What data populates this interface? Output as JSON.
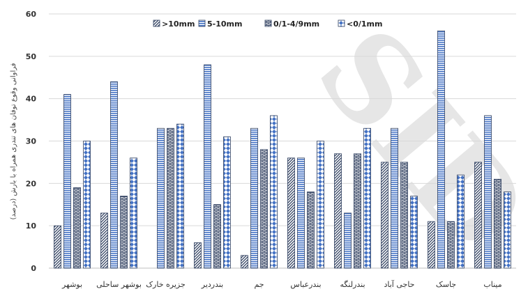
{
  "chart_data": {
    "type": "bar",
    "ylabel": "فراوانی وقوع توفان های تندری همراه با بارش (درصد)",
    "ylim": [
      0,
      60
    ],
    "yticks": [
      0,
      10,
      20,
      30,
      40,
      50,
      60
    ],
    "grid": true,
    "legend_position": "top",
    "categories": [
      "بوشهر",
      "بوشهر ساحلی",
      "جزیره خارک",
      "بندردیر",
      "جم",
      "بندرعباس",
      "بندرلنگه",
      "حاجی آباد",
      "جاسک",
      "میناب"
    ],
    "series": [
      {
        "name": ">10mm",
        "pattern": "diag",
        "values": [
          10,
          13,
          0,
          6,
          3,
          26,
          27,
          25,
          11,
          25
        ]
      },
      {
        "name": "5-10mm",
        "pattern": "hstripe",
        "values": [
          41,
          44,
          33,
          48,
          33,
          26,
          13,
          33,
          56,
          36
        ]
      },
      {
        "name": "0/1-4/9mm",
        "pattern": "brick",
        "values": [
          19,
          17,
          33,
          15,
          28,
          18,
          27,
          25,
          11,
          21
        ]
      },
      {
        "name": "<0/1mm",
        "pattern": "diamond",
        "values": [
          30,
          26,
          34,
          31,
          36,
          30,
          33,
          17,
          22,
          18
        ]
      }
    ],
    "watermark": "SID",
    "colors": {
      "blue": "#4472c4",
      "dark": "#2f3f5f",
      "grid": "#d9d9d9",
      "watermark": "#e6e6e6"
    }
  }
}
